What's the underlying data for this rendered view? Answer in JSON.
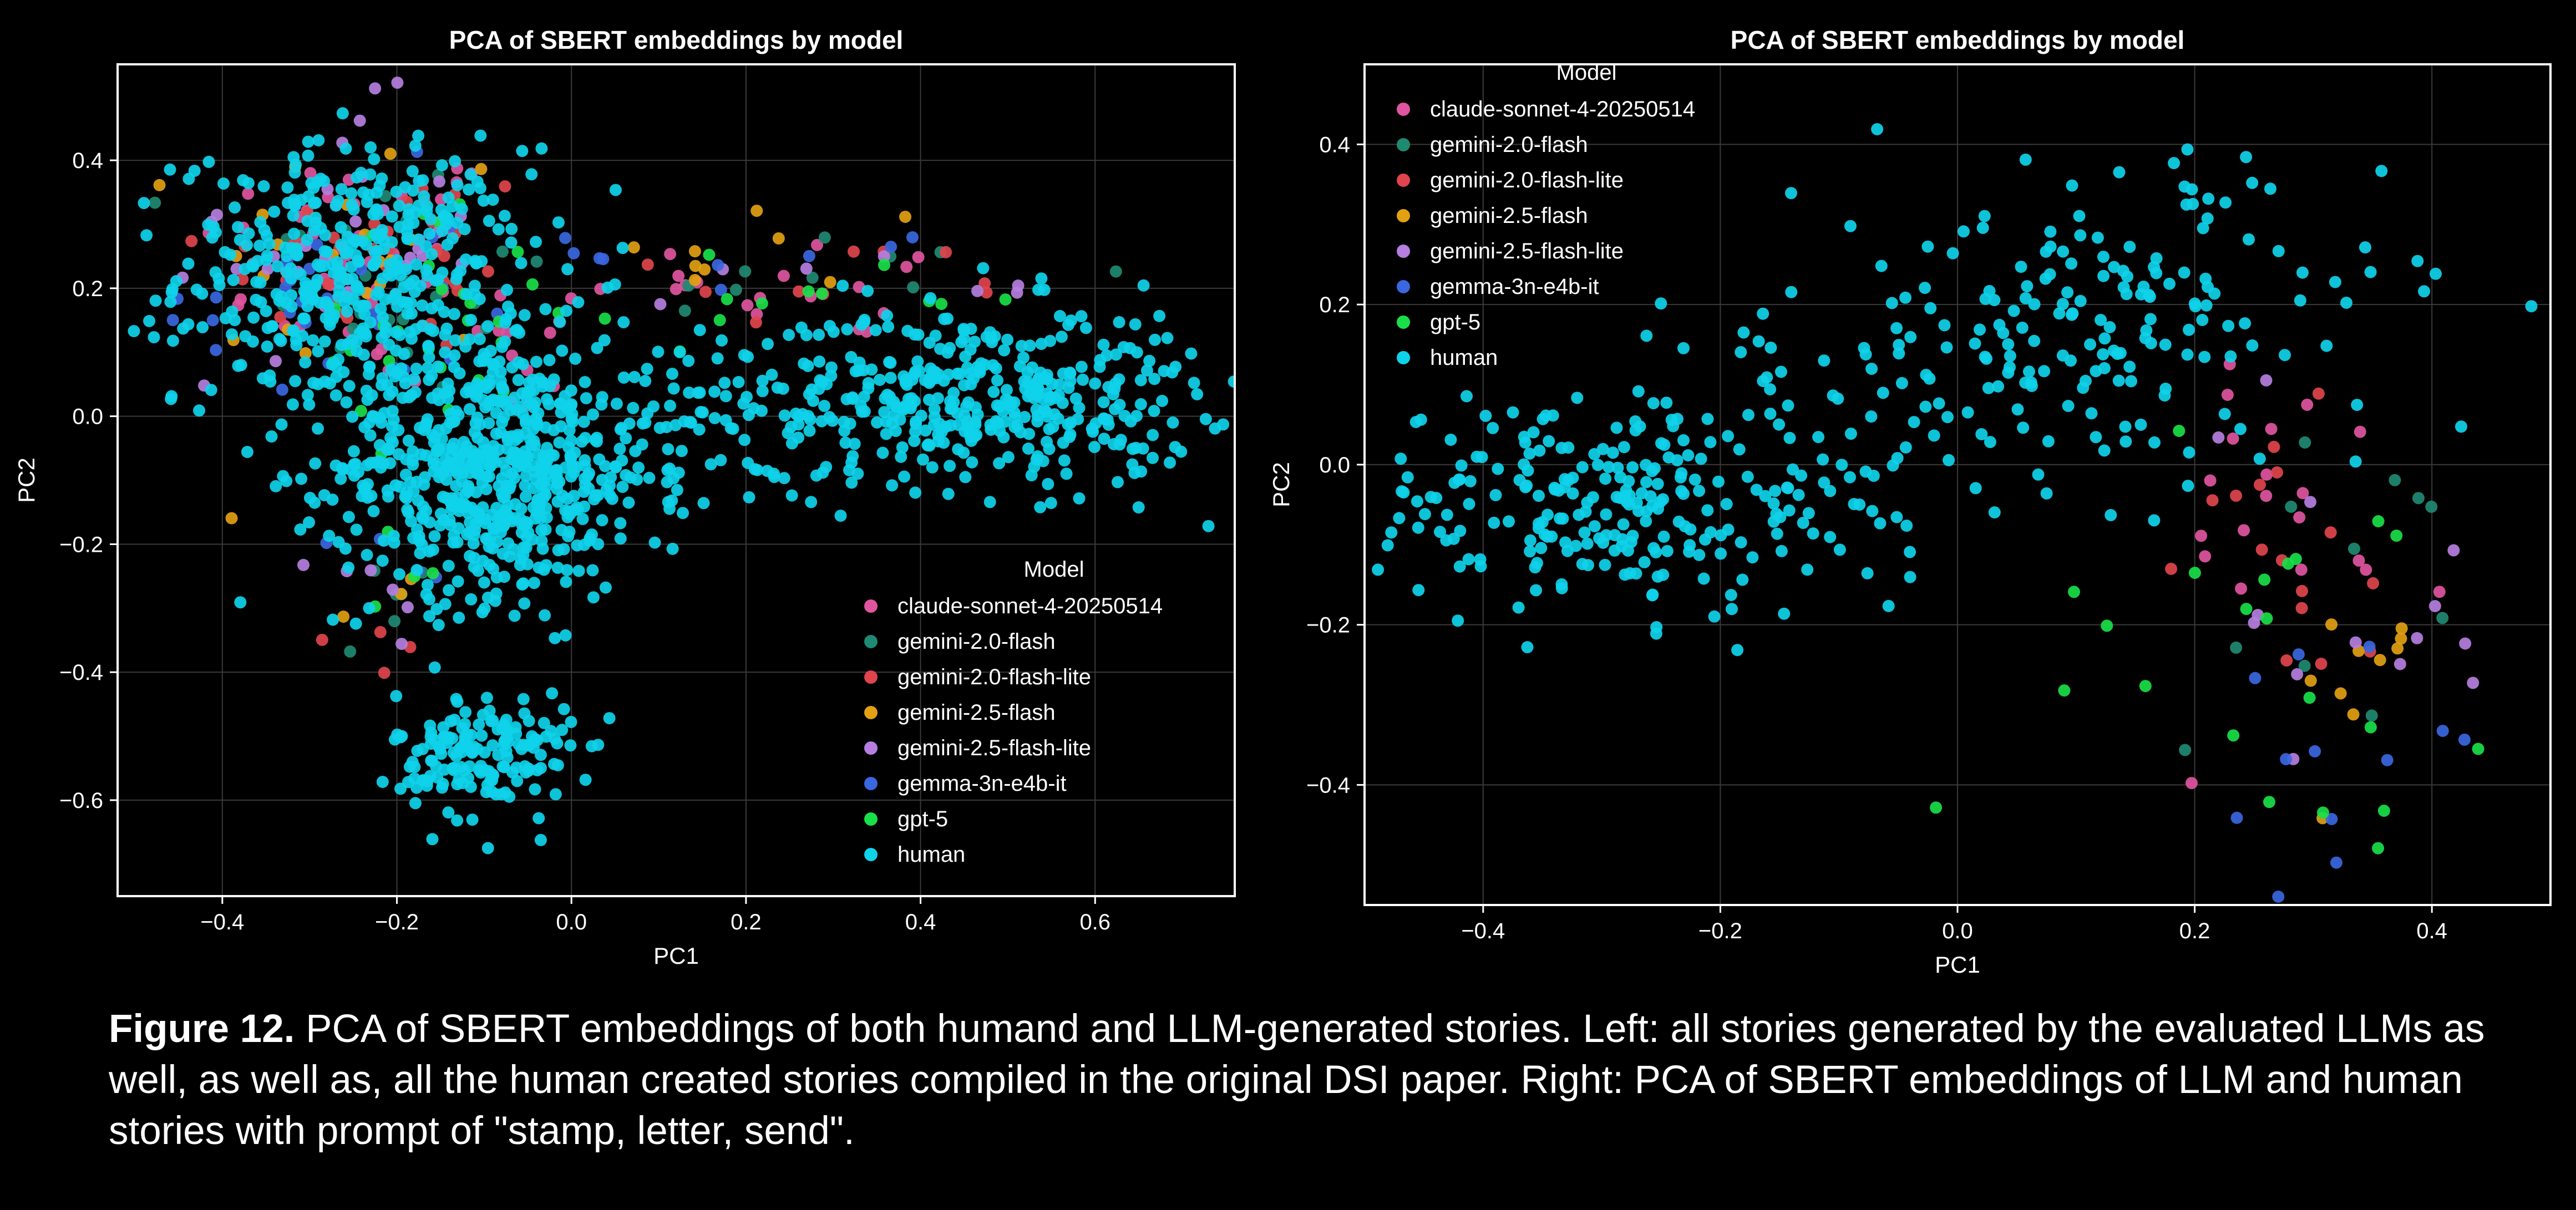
{
  "colors": {
    "claude-sonnet-4-20250514": "#e0559f",
    "gemini-2.0-flash": "#1f8a72",
    "gemini-2.0-flash-lite": "#e0444c",
    "gemini-2.5-flash": "#e2a012",
    "gemini-2.5-flash-lite": "#b57ee0",
    "gemma-3n-e4b-it": "#3a67e0",
    "gpt-5": "#19e048",
    "human": "#0fd3ea"
  },
  "caption": {
    "label": "Figure 12.",
    "text": " PCA of SBERT embeddings of both humand and LLM-generated stories. Left: all stories generated by the evaluated LLMs as well, as well as, all the human created stories compiled in the original DSI paper. Right: PCA of SBERT embeddings of LLM and human stories with prompt of \"stamp, letter, send\"."
  },
  "chart_data": [
    {
      "type": "scatter",
      "title": "PCA of SBERT embeddings by model",
      "xlabel": "PC1",
      "ylabel": "PC2",
      "xlim": [
        -0.52,
        0.76
      ],
      "ylim": [
        -0.75,
        0.55
      ],
      "xticks": [
        -0.4,
        -0.2,
        0.0,
        0.2,
        0.4,
        0.6
      ],
      "xtick_labels": [
        "−0.4",
        "−0.2",
        "0.0",
        "0.2",
        "0.4",
        "0.6"
      ],
      "yticks": [
        0.4,
        0.2,
        0.0,
        -0.2,
        -0.4,
        -0.6
      ],
      "ytick_labels": [
        "0.4",
        "0.2",
        "0.0",
        "−0.2",
        "−0.4",
        "−0.6"
      ],
      "grid": true,
      "legend_title": "Model",
      "legend_position": "lower-right",
      "series": [
        {
          "name": "claude-sonnet-4-20250514",
          "clusters": [
            [
              -0.25,
              0.25,
              0.09,
              0.09,
              45
            ],
            [
              0.3,
              0.2,
              0.14,
              0.04,
              18
            ],
            [
              -0.1,
              0.1,
              0.06,
              0.07,
              15
            ]
          ]
        },
        {
          "name": "gemini-2.0-flash",
          "clusters": [
            [
              -0.22,
              0.22,
              0.1,
              0.1,
              28
            ],
            [
              0.3,
              0.22,
              0.14,
              0.04,
              10
            ],
            [
              -0.2,
              -0.28,
              0.05,
              0.05,
              6
            ]
          ]
        },
        {
          "name": "gemini-2.0-flash-lite",
          "clusters": [
            [
              -0.22,
              0.25,
              0.1,
              0.08,
              36
            ],
            [
              0.28,
              0.2,
              0.14,
              0.04,
              10
            ],
            [
              -0.22,
              -0.36,
              0.04,
              0.03,
              4
            ]
          ]
        },
        {
          "name": "gemini-2.5-flash",
          "clusters": [
            [
              -0.25,
              0.26,
              0.09,
              0.1,
              24
            ],
            [
              0.22,
              0.25,
              0.1,
              0.05,
              9
            ],
            [
              -0.2,
              -0.3,
              0.04,
              0.03,
              3
            ]
          ]
        },
        {
          "name": "gemini-2.5-flash-lite",
          "clusters": [
            [
              -0.28,
              0.28,
              0.09,
              0.1,
              30
            ],
            [
              0.35,
              0.2,
              0.1,
              0.03,
              7
            ],
            [
              -0.22,
              -0.28,
              0.04,
              0.04,
              6
            ]
          ]
        },
        {
          "name": "gemma-3n-e4b-it",
          "clusters": [
            [
              -0.3,
              0.18,
              0.09,
              0.1,
              28
            ],
            [
              0.25,
              0.26,
              0.12,
              0.04,
              9
            ],
            [
              -0.18,
              -0.2,
              0.04,
              0.05,
              4
            ]
          ]
        },
        {
          "name": "gpt-5",
          "clusters": [
            [
              -0.15,
              0.15,
              0.09,
              0.09,
              30
            ],
            [
              0.28,
              0.18,
              0.14,
              0.04,
              12
            ],
            [
              -0.15,
              -0.25,
              0.04,
              0.04,
              4
            ]
          ]
        },
        {
          "name": "human",
          "clusters": [
            [
              -0.25,
              0.22,
              0.1,
              0.1,
              420
            ],
            [
              -0.09,
              -0.08,
              0.09,
              0.1,
              650
            ],
            [
              0.46,
              0.03,
              0.13,
              0.07,
              420
            ],
            [
              -0.1,
              -0.53,
              0.05,
              0.05,
              170
            ],
            [
              0.15,
              0.0,
              0.07,
              0.08,
              60
            ]
          ]
        }
      ]
    },
    {
      "type": "scatter",
      "title": "PCA of SBERT embeddings by model",
      "xlabel": "PC1",
      "ylabel": "PC2",
      "xlim": [
        -0.5,
        0.5
      ],
      "ylim": [
        -0.55,
        0.5
      ],
      "xticks": [
        -0.4,
        -0.2,
        0.0,
        0.2,
        0.4
      ],
      "xtick_labels": [
        "−0.4",
        "−0.2",
        "0.0",
        "0.2",
        "0.4"
      ],
      "yticks": [
        0.4,
        0.2,
        0.0,
        -0.2,
        -0.4
      ],
      "ytick_labels": [
        "0.4",
        "0.2",
        "0.0",
        "−0.2",
        "−0.4"
      ],
      "grid": true,
      "legend_title": "Model",
      "legend_position": "upper-left",
      "series": [
        {
          "name": "claude-sonnet-4-20250514",
          "clusters": [
            [
              0.25,
              -0.08,
              0.08,
              0.12,
              20
            ]
          ]
        },
        {
          "name": "gemini-2.0-flash",
          "clusters": [
            [
              0.33,
              -0.15,
              0.08,
              0.12,
              12
            ]
          ]
        },
        {
          "name": "gemini-2.0-flash-lite",
          "clusters": [
            [
              0.26,
              -0.1,
              0.07,
              0.12,
              16
            ]
          ]
        },
        {
          "name": "gemini-2.5-flash",
          "clusters": [
            [
              0.34,
              -0.28,
              0.06,
              0.07,
              10
            ]
          ]
        },
        {
          "name": "gemini-2.5-flash-lite",
          "clusters": [
            [
              0.3,
              -0.18,
              0.09,
              0.12,
              14
            ]
          ]
        },
        {
          "name": "gemma-3n-e4b-it",
          "clusters": [
            [
              0.36,
              -0.36,
              0.06,
              0.08,
              12
            ]
          ]
        },
        {
          "name": "gpt-5",
          "clusters": [
            [
              0.25,
              -0.22,
              0.1,
              0.12,
              22
            ]
          ]
        },
        {
          "name": "human",
          "clusters": [
            [
              -0.3,
              -0.05,
              0.1,
              0.07,
              230
            ],
            [
              0.12,
              0.18,
              0.12,
              0.1,
              180
            ],
            [
              -0.1,
              0.02,
              0.08,
              0.08,
              60
            ]
          ]
        }
      ]
    }
  ]
}
